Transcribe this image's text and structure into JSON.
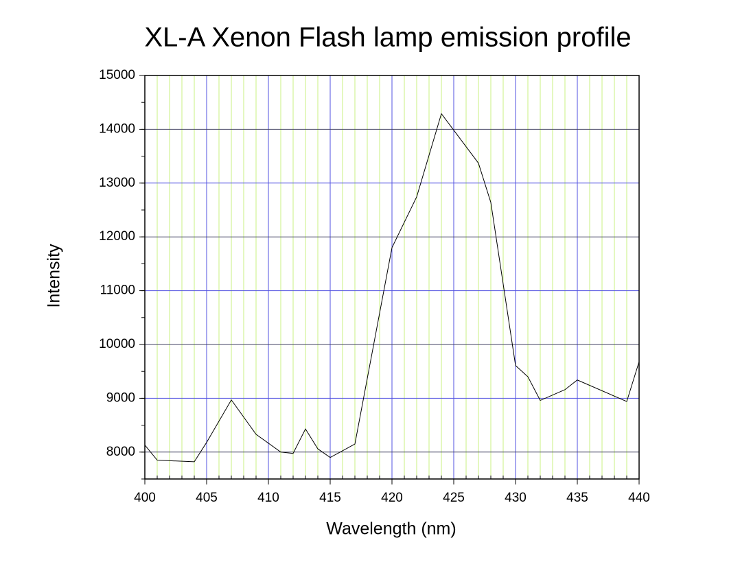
{
  "chart_data": {
    "type": "line",
    "title": "XL-A Xenon Flash lamp emission profile",
    "x_label": "Wavelength (nm)",
    "y_label": "Intensity",
    "x": [
      400,
      401,
      404,
      405,
      407,
      409,
      411,
      412,
      413,
      414,
      415,
      417,
      420,
      422,
      424,
      427,
      428,
      430,
      431,
      432,
      434,
      435,
      439,
      440
    ],
    "series": [
      {
        "name": "Intensity",
        "color": "#000000",
        "values": [
          8130,
          7850,
          7820,
          8180,
          8970,
          8330,
          8000,
          7975,
          8430,
          8060,
          7900,
          8150,
          11800,
          12745,
          14290,
          13370,
          12640,
          9610,
          9400,
          8960,
          9160,
          9340,
          8940,
          9680
        ]
      }
    ],
    "xlim": [
      400,
      440
    ],
    "xticks": [
      400,
      405,
      410,
      415,
      420,
      425,
      430,
      435,
      440
    ],
    "ylim": [
      7500,
      15000
    ],
    "yticks": [
      8000,
      9000,
      10000,
      11000,
      12000,
      13000,
      14000,
      15000
    ],
    "grid": true,
    "minor_grid": true,
    "major_grid_color": "#5050e0",
    "minor_grid_color": "#c8f080"
  }
}
